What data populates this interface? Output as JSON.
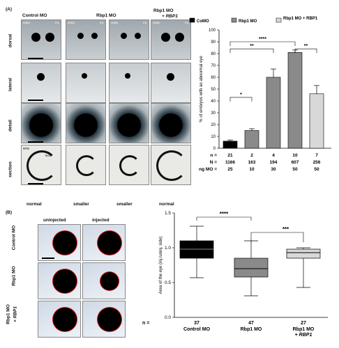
{
  "panel_a": {
    "label": "(A)",
    "col_headers": [
      "Control MO",
      "Rbp1 MO",
      "Rbp1 MO"
    ],
    "col_header_sub": "+ RBP1",
    "row_labels": [
      "dorsal",
      "lateral",
      "detail",
      "section"
    ],
    "uninj": "uninj.",
    "inj": "inj.",
    "rpe": "RPE",
    "lens": "lens",
    "bottom_labels": [
      "normal",
      "smaller",
      "smaller",
      "normal"
    ]
  },
  "panel_b": {
    "label": "(B)",
    "col_headers": [
      "uninjected",
      "injected"
    ],
    "row_labels": [
      "Control MO",
      "Rbp1 MO",
      "Rbp1 MO"
    ],
    "row_label_sub": "+ RBP1"
  },
  "chart_data": [
    {
      "type": "bar",
      "ylabel": "% of embryos with an abnormal eye",
      "ylim": [
        0,
        100
      ],
      "yticks": [
        0,
        10,
        20,
        30,
        40,
        50,
        60,
        70,
        80,
        90,
        100
      ],
      "legend": [
        "CoMO",
        "Rbp1 MO",
        "Rbp1 MO + RBP1"
      ],
      "legend_position": "top",
      "bars": [
        {
          "group": "CoMO",
          "value": 6,
          "error": 1,
          "color": "#000000",
          "n": "21",
          "N": "1166",
          "ng": "25"
        },
        {
          "group": "Rbp1 MO",
          "value": 15,
          "error": 1.5,
          "color": "#8a8a8a",
          "n": "2",
          "N": "163",
          "ng": "10"
        },
        {
          "group": "Rbp1 MO",
          "value": 60,
          "error": 7,
          "color": "#8a8a8a",
          "n": "4",
          "N": "194",
          "ng": "30"
        },
        {
          "group": "Rbp1 MO",
          "value": 81,
          "error": 2,
          "color": "#8a8a8a",
          "n": "10",
          "N": "607",
          "ng": "50"
        },
        {
          "group": "Rbp1 MO + RBP1",
          "value": 46,
          "error": 7,
          "color": "#d8d8d8",
          "n": "7",
          "N": "256",
          "ng": "50"
        }
      ],
      "row_labels": [
        "n =",
        "N =",
        "ng MO ="
      ],
      "significance": [
        "*",
        "**",
        "****",
        "**"
      ]
    },
    {
      "type": "boxplot",
      "ylabel": "Area of the eye (inj./uninj. side)",
      "ylim": [
        0,
        1.5
      ],
      "yticks": [
        "0.0",
        "0.5",
        "1.0",
        "1.5"
      ],
      "categories": [
        "Control MO",
        "Rbp1 MO",
        "Rbp1 MO"
      ],
      "category_sub": [
        "",
        "",
        "+ RBP1"
      ],
      "n": [
        "37",
        "47",
        "27"
      ],
      "n_label": "n =",
      "boxes": [
        {
          "min": 0.57,
          "q1": 0.85,
          "median": 0.98,
          "q3": 1.1,
          "max": 1.31,
          "color": "#000000"
        },
        {
          "min": 0.31,
          "q1": 0.58,
          "median": 0.7,
          "q3": 0.85,
          "max": 1.1,
          "color": "#8a8a8a"
        },
        {
          "min": 0.43,
          "q1": 0.85,
          "median": 0.93,
          "q3": 0.98,
          "max": 1.0,
          "color": "#d8d8d8"
        }
      ],
      "significance": [
        "****",
        "***"
      ]
    }
  ]
}
